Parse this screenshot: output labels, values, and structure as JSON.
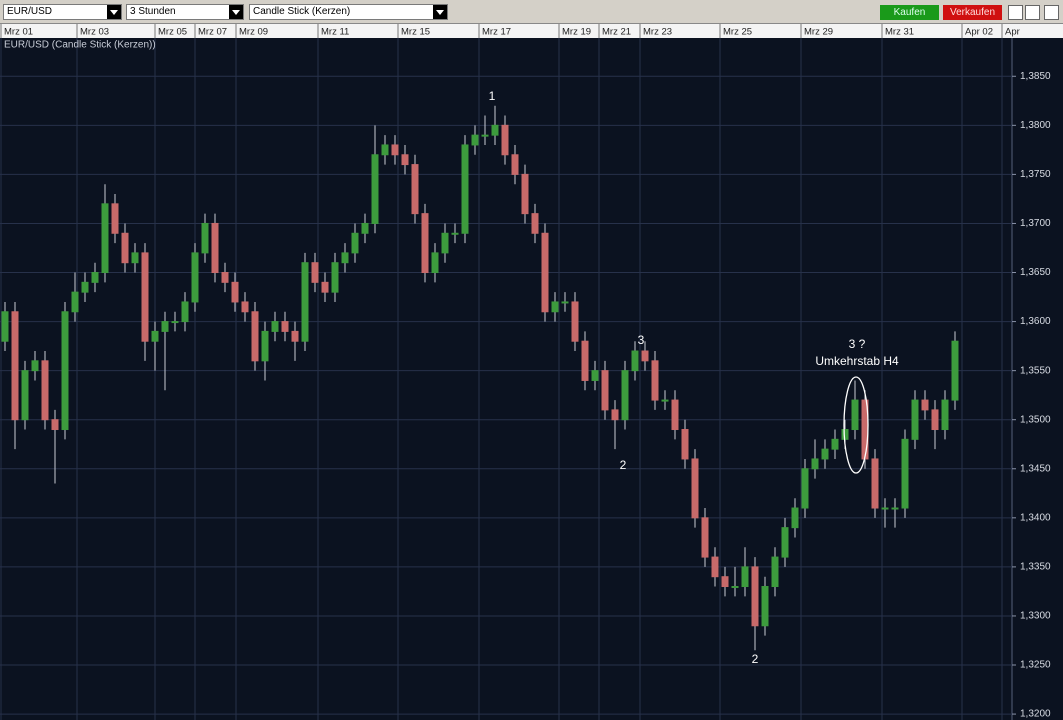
{
  "toolbar": {
    "symbol": "EUR/USD",
    "interval": "3 Stunden",
    "chart_style": "Candle Stick (Kerzen)",
    "buy": "Kaufen",
    "sell": "Verkaufen"
  },
  "chart_data": {
    "type": "candlestick",
    "title": "EUR/USD (Candle Stick (Kerzen))",
    "up_color": "#3d9b3d",
    "down_color": "#c86a6a",
    "grid": true,
    "open": [
      1.358,
      1.361,
      1.35,
      1.355,
      1.356,
      1.35,
      1.349,
      1.361,
      1.363,
      1.364,
      1.365,
      1.372,
      1.369,
      1.366,
      1.367,
      1.358,
      1.359,
      1.36,
      1.36,
      1.362,
      1.367,
      1.37,
      1.365,
      1.364,
      1.362,
      1.361,
      1.356,
      1.359,
      1.36,
      1.359,
      1.358,
      1.366,
      1.364,
      1.363,
      1.366,
      1.367,
      1.369,
      1.37,
      1.377,
      1.378,
      1.377,
      1.376,
      1.371,
      1.365,
      1.367,
      1.369,
      1.369,
      1.378,
      1.379,
      1.379,
      1.38,
      1.377,
      1.375,
      1.371,
      1.369,
      1.361,
      1.362,
      1.362,
      1.358,
      1.354,
      1.355,
      1.351,
      1.35,
      1.355,
      1.357,
      1.356,
      1.352,
      1.352,
      1.349,
      1.346,
      1.34,
      1.336,
      1.334,
      1.333,
      1.333,
      1.335,
      1.329,
      1.333,
      1.336,
      1.339,
      1.341,
      1.345,
      1.346,
      1.347,
      1.348,
      1.349,
      1.352,
      1.346,
      1.341,
      1.341,
      1.341,
      1.348,
      1.352,
      1.351,
      1.349,
      1.352
    ],
    "high": [
      1.362,
      1.362,
      1.356,
      1.357,
      1.357,
      1.351,
      1.362,
      1.365,
      1.365,
      1.366,
      1.374,
      1.373,
      1.37,
      1.368,
      1.368,
      1.36,
      1.361,
      1.361,
      1.363,
      1.368,
      1.371,
      1.371,
      1.366,
      1.365,
      1.363,
      1.362,
      1.36,
      1.361,
      1.361,
      1.36,
      1.367,
      1.367,
      1.365,
      1.367,
      1.368,
      1.37,
      1.371,
      1.38,
      1.379,
      1.379,
      1.378,
      1.377,
      1.372,
      1.368,
      1.37,
      1.37,
      1.379,
      1.38,
      1.381,
      1.382,
      1.381,
      1.378,
      1.376,
      1.372,
      1.37,
      1.363,
      1.363,
      1.363,
      1.359,
      1.356,
      1.356,
      1.352,
      1.356,
      1.358,
      1.358,
      1.357,
      1.353,
      1.353,
      1.35,
      1.347,
      1.341,
      1.337,
      1.335,
      1.335,
      1.337,
      1.336,
      1.334,
      1.337,
      1.34,
      1.342,
      1.346,
      1.348,
      1.348,
      1.349,
      1.35,
      1.354,
      1.353,
      1.347,
      1.342,
      1.342,
      1.349,
      1.353,
      1.353,
      1.352,
      1.353,
      1.359
    ],
    "low": [
      1.357,
      1.347,
      1.349,
      1.354,
      1.349,
      1.3435,
      1.348,
      1.36,
      1.362,
      1.363,
      1.364,
      1.368,
      1.365,
      1.365,
      1.356,
      1.355,
      1.353,
      1.359,
      1.359,
      1.361,
      1.366,
      1.364,
      1.363,
      1.361,
      1.36,
      1.355,
      1.354,
      1.358,
      1.358,
      1.356,
      1.357,
      1.363,
      1.362,
      1.362,
      1.365,
      1.366,
      1.368,
      1.369,
      1.376,
      1.376,
      1.375,
      1.37,
      1.364,
      1.364,
      1.366,
      1.368,
      1.368,
      1.377,
      1.378,
      1.378,
      1.376,
      1.374,
      1.37,
      1.368,
      1.36,
      1.36,
      1.361,
      1.357,
      1.353,
      1.353,
      1.35,
      1.347,
      1.349,
      1.354,
      1.355,
      1.351,
      1.351,
      1.348,
      1.345,
      1.339,
      1.335,
      1.333,
      1.332,
      1.332,
      1.332,
      1.3265,
      1.328,
      1.332,
      1.335,
      1.338,
      1.34,
      1.344,
      1.345,
      1.346,
      1.347,
      1.348,
      1.345,
      1.34,
      1.339,
      1.339,
      1.34,
      1.347,
      1.35,
      1.347,
      1.348,
      1.351
    ],
    "close": [
      1.361,
      1.35,
      1.355,
      1.356,
      1.35,
      1.349,
      1.361,
      1.363,
      1.364,
      1.365,
      1.372,
      1.369,
      1.366,
      1.367,
      1.358,
      1.359,
      1.36,
      1.36,
      1.362,
      1.367,
      1.37,
      1.365,
      1.364,
      1.362,
      1.361,
      1.356,
      1.359,
      1.36,
      1.359,
      1.358,
      1.366,
      1.364,
      1.363,
      1.366,
      1.367,
      1.369,
      1.37,
      1.377,
      1.378,
      1.377,
      1.376,
      1.371,
      1.365,
      1.367,
      1.369,
      1.369,
      1.378,
      1.379,
      1.379,
      1.38,
      1.377,
      1.375,
      1.371,
      1.369,
      1.361,
      1.362,
      1.362,
      1.358,
      1.354,
      1.355,
      1.351,
      1.35,
      1.355,
      1.357,
      1.356,
      1.352,
      1.352,
      1.349,
      1.346,
      1.34,
      1.336,
      1.334,
      1.333,
      1.333,
      1.335,
      1.329,
      1.333,
      1.336,
      1.339,
      1.341,
      1.345,
      1.346,
      1.347,
      1.348,
      1.349,
      1.352,
      1.346,
      1.341,
      1.341,
      1.341,
      1.348,
      1.352,
      1.351,
      1.349,
      1.352,
      1.358
    ],
    "xlim": [
      -0.5,
      100.7
    ],
    "xticks": [
      {
        "value": -0.4,
        "label": "Mrz 01"
      },
      {
        "value": 7.2,
        "label": "Mrz 03"
      },
      {
        "value": 15,
        "label": "Mrz 05"
      },
      {
        "value": 19,
        "label": "Mrz 07"
      },
      {
        "value": 23.1,
        "label": "Mrz 09"
      },
      {
        "value": 31.3,
        "label": "Mrz 11"
      },
      {
        "value": 39.3,
        "label": "Mrz 15"
      },
      {
        "value": 47.4,
        "label": "Mrz 17"
      },
      {
        "value": 55.4,
        "label": "Mrz 19"
      },
      {
        "value": 59.4,
        "label": "Mrz 21"
      },
      {
        "value": 63.5,
        "label": "Mrz 23"
      },
      {
        "value": 71.5,
        "label": "Mrz 25"
      },
      {
        "value": 79.6,
        "label": "Mrz 29"
      },
      {
        "value": 87.7,
        "label": "Mrz 31"
      },
      {
        "value": 95.7,
        "label": "Apr 02"
      },
      {
        "value": 99.7,
        "label": "Apr"
      }
    ],
    "ylim": [
      1.3196,
      1.3889
    ],
    "yticks": [
      {
        "value": 1.32,
        "label": "1,3200"
      },
      {
        "value": 1.325,
        "label": "1,3250"
      },
      {
        "value": 1.33,
        "label": "1,3300"
      },
      {
        "value": 1.335,
        "label": "1,3350"
      },
      {
        "value": 1.34,
        "label": "1,3400"
      },
      {
        "value": 1.345,
        "label": "1,3450"
      },
      {
        "value": 1.35,
        "label": "1,3500"
      },
      {
        "value": 1.355,
        "label": "1,3550"
      },
      {
        "value": 1.36,
        "label": "1,3600"
      },
      {
        "value": 1.365,
        "label": "1,3650"
      },
      {
        "value": 1.37,
        "label": "1,3700"
      },
      {
        "value": 1.375,
        "label": "1,3750"
      },
      {
        "value": 1.38,
        "label": "1,3800"
      },
      {
        "value": 1.385,
        "label": "1,3850"
      }
    ],
    "annotations": [
      "1",
      "3",
      "2",
      "2",
      "3 ?",
      "Umkehrstab H4"
    ]
  }
}
